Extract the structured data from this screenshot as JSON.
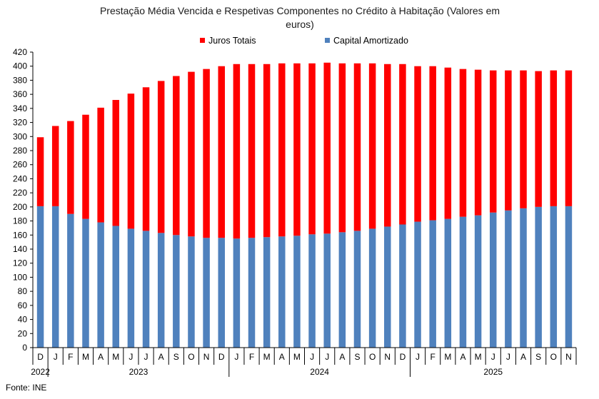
{
  "chart_data": {
    "type": "bar",
    "stacked": true,
    "title": "Prestação Média Vencida  e Respetivas Componentes  no Crédito à Habitação (Valores em euros)",
    "title_lines": [
      "Prestação Média Vencida  e Respetivas Componentes  no Crédito à Habitação (Valores em",
      "euros)"
    ],
    "legend": {
      "position": "top"
    },
    "ylim": [
      0,
      420
    ],
    "ytick_step": 20,
    "yticks": [
      "0",
      "20",
      "40",
      "60",
      "80",
      "100",
      "120",
      "140",
      "160",
      "180",
      "200",
      "220",
      "240",
      "260",
      "280",
      "300",
      "320",
      "340",
      "360",
      "380",
      "400",
      "420"
    ],
    "grid": false,
    "categories": [
      "D",
      "J",
      "F",
      "M",
      "A",
      "M",
      "J",
      "J",
      "A",
      "S",
      "O",
      "N",
      "D",
      "J",
      "F",
      "M",
      "A",
      "M",
      "J",
      "J",
      "A",
      "S",
      "O",
      "N",
      "D",
      "J",
      "F",
      "M",
      "A",
      "M",
      "J",
      "J",
      "A",
      "S",
      "O",
      "N"
    ],
    "year_groups": [
      {
        "label": "2022",
        "count": 1
      },
      {
        "label": "2023",
        "count": 12
      },
      {
        "label": "2024",
        "count": 12
      },
      {
        "label": "2025",
        "count": 11
      }
    ],
    "series": [
      {
        "name": "Capital Amortizado",
        "color": "#4f81bd",
        "values": [
          201,
          201,
          190,
          183,
          178,
          173,
          169,
          166,
          163,
          160,
          158,
          156,
          156,
          155,
          156,
          157,
          158,
          159,
          161,
          162,
          164,
          166,
          169,
          172,
          175,
          179,
          181,
          183,
          186,
          188,
          192,
          195,
          198,
          200,
          201,
          201
        ]
      },
      {
        "name": "Juros Totais",
        "color": "#ff0000",
        "values": [
          98,
          114,
          132,
          148,
          163,
          179,
          192,
          204,
          216,
          226,
          234,
          240,
          244,
          248,
          247,
          246,
          246,
          245,
          243,
          243,
          240,
          238,
          235,
          231,
          228,
          221,
          219,
          215,
          210,
          207,
          202,
          199,
          196,
          193,
          193,
          193
        ]
      }
    ]
  },
  "source": "Fonte: INE"
}
